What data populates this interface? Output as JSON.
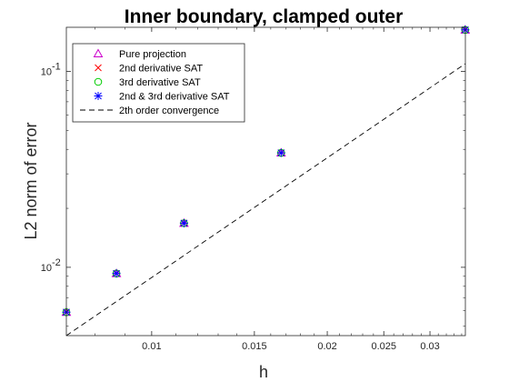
{
  "chart_data": {
    "type": "scatter",
    "title": "Inner boundary, clamped outer",
    "xlabel": "h",
    "ylabel": "L2 norm of error",
    "xscale": "log",
    "yscale": "log",
    "xlim": [
      0.00714,
      0.0345
    ],
    "ylim": [
      0.00448,
      0.168
    ],
    "xticks": [
      {
        "value": 0.01,
        "label": "0.01"
      },
      {
        "value": 0.015,
        "label": "0.015"
      },
      {
        "value": 0.02,
        "label": "0.02"
      },
      {
        "value": 0.025,
        "label": "0.025"
      },
      {
        "value": 0.03,
        "label": "0.03"
      }
    ],
    "yticks": [
      {
        "value": 0.01,
        "label": "10",
        "exp": "-2"
      },
      {
        "value": 0.1,
        "label": "10",
        "exp": "-1"
      }
    ],
    "grid": false,
    "legend_position": "top-left",
    "x": [
      0.00714,
      0.0087,
      0.01136,
      0.01667,
      0.03448
    ],
    "series": [
      {
        "name": "Pure projection",
        "marker": "triangle",
        "color": "#cc00cc",
        "values": [
          0.0059,
          0.0093,
          0.0168,
          0.0384,
          0.163
        ]
      },
      {
        "name": "2nd derivative SAT",
        "marker": "x",
        "color": "#ff0000",
        "values": [
          0.0059,
          0.0093,
          0.0168,
          0.0384,
          0.163
        ]
      },
      {
        "name": "3rd derivative SAT",
        "marker": "circle",
        "color": "#00cc00",
        "values": [
          0.0059,
          0.0093,
          0.0168,
          0.0384,
          0.163
        ]
      },
      {
        "name": "2nd & 3rd derivative SAT",
        "marker": "asterisk",
        "color": "#0000ff",
        "values": [
          0.0059,
          0.0093,
          0.0168,
          0.0384,
          0.163
        ]
      }
    ],
    "reference_line": {
      "name": "2th order convergence",
      "style": "dashed",
      "color": "#000000",
      "x": [
        0.00714,
        0.0345
      ],
      "y": [
        0.00448,
        0.1095
      ]
    }
  }
}
